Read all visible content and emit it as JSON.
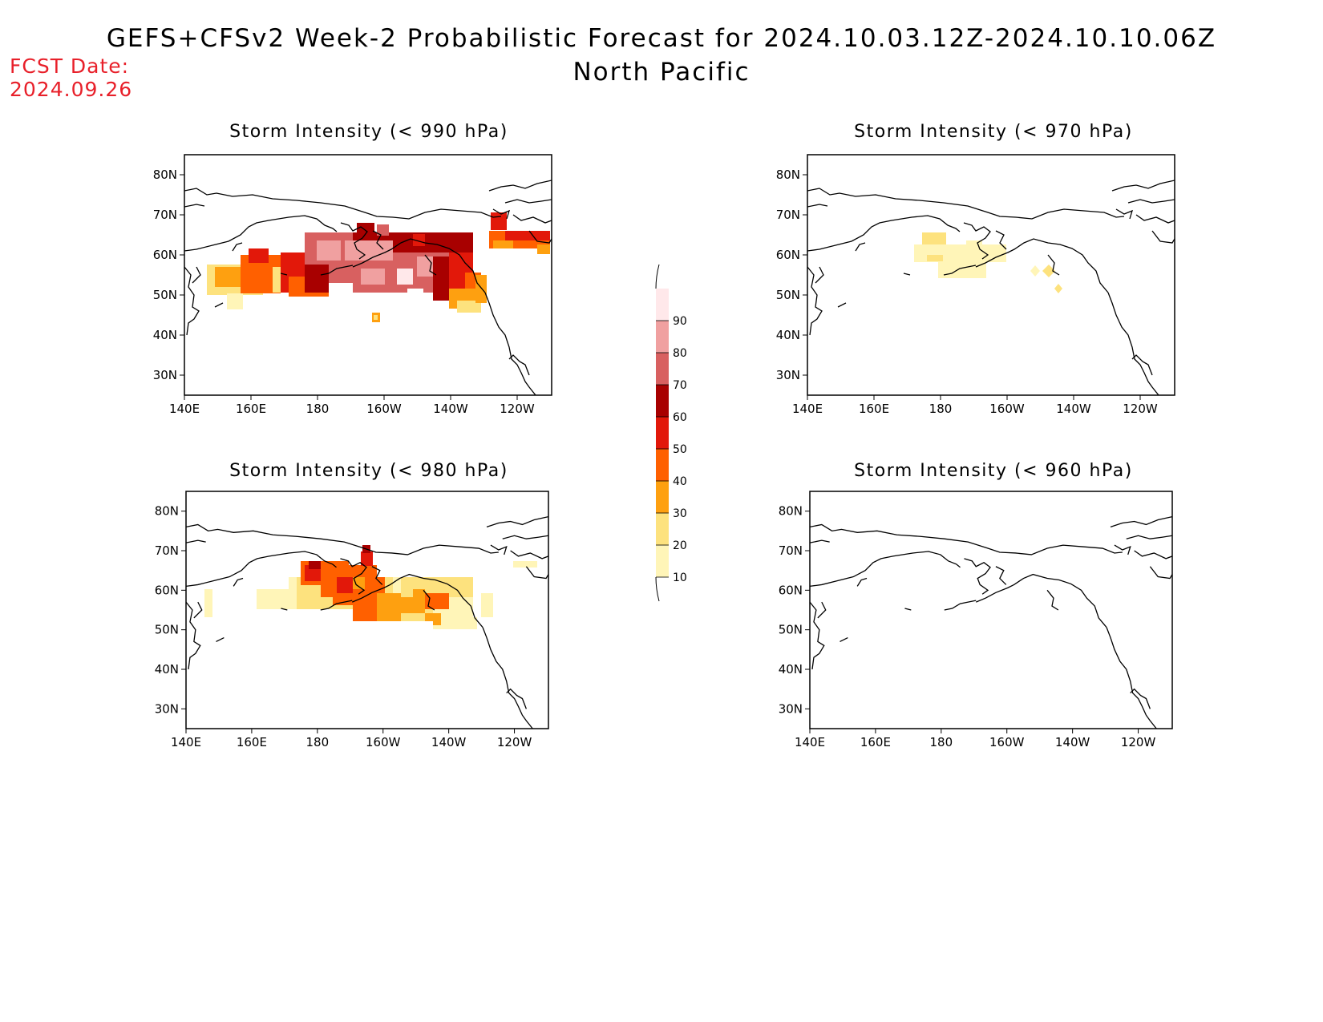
{
  "title_line1": "GEFS+CFSv2 Week-2 Probabilistic Forecast for 2024.10.03.12Z-2024.10.10.06Z",
  "title_line2": "North Pacific",
  "fcst_label": "FCST Date:",
  "fcst_date": "2024.09.26",
  "panels": [
    {
      "title": "Storm Intensity (< 990 hPa)"
    },
    {
      "title": "Storm Intensity (< 970 hPa)"
    },
    {
      "title": "Storm Intensity (< 980 hPa)"
    },
    {
      "title": "Storm Intensity (< 960 hPa)"
    }
  ],
  "x_ticks": [
    "140E",
    "160E",
    "180",
    "160W",
    "140W",
    "120W"
  ],
  "y_ticks": [
    "80N",
    "70N",
    "60N",
    "50N",
    "40N",
    "30N"
  ],
  "colorbar": {
    "levels": [
      "10",
      "20",
      "30",
      "40",
      "50",
      "60",
      "70",
      "80",
      "90"
    ],
    "colors": [
      "#fff5b8",
      "#fde27e",
      "#fea010",
      "#ff6000",
      "#e2180a",
      "#a80000",
      "#d86060",
      "#f0a0a0",
      "#ffe8ea"
    ]
  },
  "colors": {
    "fcst": "#e8202a"
  }
}
